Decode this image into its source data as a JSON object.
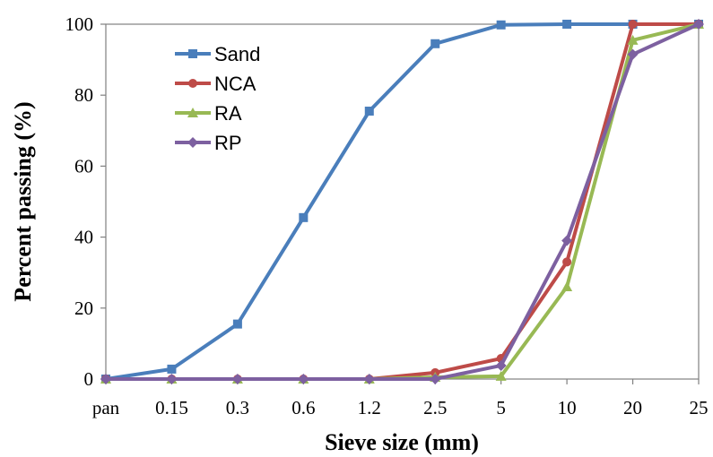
{
  "chart_data": {
    "type": "line",
    "xlabel": "Sieve size (mm)",
    "ylabel": "Percent passing (%)",
    "categories": [
      "pan",
      "0.15",
      "0.3",
      "0.6",
      "1.2",
      "2.5",
      "5",
      "10",
      "20",
      "25"
    ],
    "ylim": [
      0,
      100
    ],
    "yticks": [
      0,
      20,
      40,
      60,
      80,
      100
    ],
    "grid": false,
    "legend_position": "top-left",
    "series": [
      {
        "name": "Sand",
        "color": "#4a7ebb",
        "marker": "square",
        "values": [
          0,
          2.8,
          15.5,
          45.5,
          75.5,
          94.5,
          99.8,
          100,
          100,
          100
        ]
      },
      {
        "name": "NCA",
        "color": "#be4b48",
        "marker": "circle",
        "values": [
          0,
          0,
          0,
          0,
          0,
          1.8,
          5.8,
          33,
          100,
          100
        ]
      },
      {
        "name": "RA",
        "color": "#98b954",
        "marker": "triangle",
        "values": [
          0,
          0,
          0,
          0,
          0,
          0.5,
          0.8,
          26,
          95.5,
          100
        ]
      },
      {
        "name": "RP",
        "color": "#7d60a0",
        "marker": "diamond",
        "values": [
          0,
          0,
          0,
          0,
          0,
          0,
          3.8,
          39,
          91.5,
          100
        ]
      }
    ]
  }
}
